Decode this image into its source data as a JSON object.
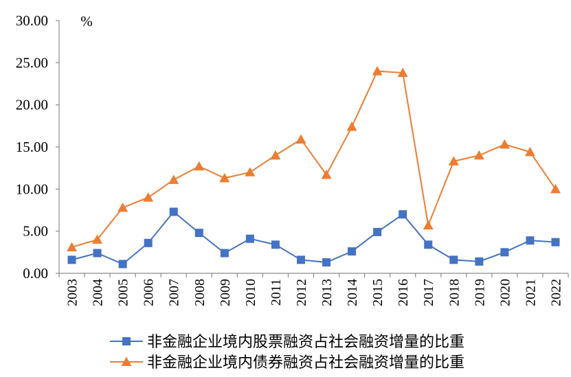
{
  "chart_data": {
    "type": "line",
    "unit_label": "%",
    "categories": [
      "2003",
      "2004",
      "2005",
      "2006",
      "2007",
      "2008",
      "2009",
      "2010",
      "2011",
      "2012",
      "2013",
      "2014",
      "2015",
      "2016",
      "2017",
      "2018",
      "2019",
      "2020",
      "2021",
      "2022"
    ],
    "ylim": [
      0,
      30
    ],
    "yticks": [
      "0.00",
      "5.00",
      "10.00",
      "15.00",
      "20.00",
      "25.00",
      "30.00"
    ],
    "grid": false,
    "legend_position": "bottom",
    "series": [
      {
        "name": "非金融企业境内股票融资占社会融资增量的比重",
        "color": "#4472C4",
        "marker": "square",
        "values": [
          1.6,
          2.4,
          1.1,
          3.6,
          7.3,
          4.8,
          2.4,
          4.1,
          3.4,
          1.6,
          1.3,
          2.6,
          4.9,
          7.0,
          3.4,
          1.6,
          1.4,
          2.5,
          3.9,
          3.7
        ]
      },
      {
        "name": "非金融企业境内债券融资占社会融资增量的比重",
        "color": "#ED7D31",
        "marker": "triangle",
        "values": [
          3.1,
          4.0,
          7.8,
          9.0,
          11.1,
          12.7,
          11.3,
          12.0,
          14.0,
          15.9,
          11.7,
          17.4,
          24.0,
          23.8,
          5.7,
          13.3,
          14.0,
          15.3,
          14.4,
          10.0
        ]
      }
    ]
  }
}
